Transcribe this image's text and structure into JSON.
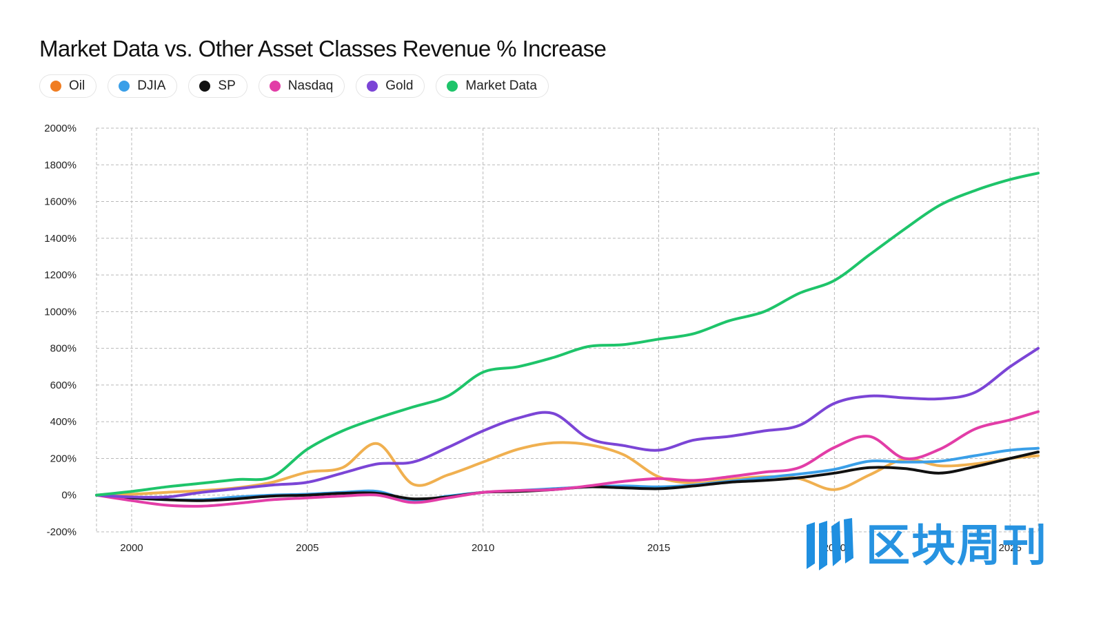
{
  "chart_data": {
    "type": "line",
    "title": "Market Data vs. Other Asset Classes Revenue % Increase",
    "xlabel": "",
    "ylabel": "",
    "xlim": [
      1999,
      2025.8
    ],
    "ylim": [
      -200,
      2000
    ],
    "grid": true,
    "legend_position": "top-left",
    "x_ticks": [
      2000,
      2005,
      2010,
      2015,
      2020,
      2025
    ],
    "x_tick_labels": [
      "2000",
      "2005",
      "2010",
      "2015",
      "2020",
      "2025"
    ],
    "y_ticks": [
      -200,
      0,
      200,
      400,
      600,
      800,
      1000,
      1200,
      1400,
      1600,
      1800,
      2000
    ],
    "y_tick_labels": [
      "-200%",
      "0%",
      "200%",
      "400%",
      "600%",
      "800%",
      "1000%",
      "1200%",
      "1400%",
      "1600%",
      "1800%",
      "2000%"
    ],
    "x": [
      1999,
      2000,
      2001,
      2002,
      2003,
      2004,
      2005,
      2006,
      2007,
      2008,
      2009,
      2010,
      2011,
      2012,
      2013,
      2014,
      2015,
      2016,
      2017,
      2018,
      2019,
      2020,
      2021,
      2022,
      2023,
      2024,
      2025,
      2025.8
    ],
    "series": [
      {
        "name": "Oil",
        "color": "#f0b050",
        "values": [
          0,
          5,
          15,
          25,
          40,
          70,
          125,
          150,
          280,
          60,
          110,
          180,
          250,
          285,
          275,
          220,
          100,
          65,
          85,
          100,
          90,
          30,
          110,
          195,
          160,
          170,
          200,
          215
        ]
      },
      {
        "name": "DJIA",
        "color": "#3a9fe8",
        "values": [
          0,
          -15,
          -25,
          -25,
          -10,
          0,
          5,
          15,
          20,
          -30,
          -5,
          15,
          25,
          35,
          45,
          50,
          45,
          55,
          75,
          95,
          115,
          140,
          185,
          180,
          185,
          215,
          245,
          255
        ]
      },
      {
        "name": "SP",
        "color": "#111111",
        "values": [
          0,
          -15,
          -25,
          -30,
          -20,
          -5,
          0,
          10,
          10,
          -20,
          -10,
          15,
          20,
          30,
          45,
          40,
          35,
          50,
          70,
          80,
          95,
          120,
          150,
          145,
          120,
          155,
          200,
          235
        ]
      },
      {
        "name": "Nasdaq",
        "color": "#e23da7",
        "values": [
          0,
          -30,
          -55,
          -60,
          -45,
          -25,
          -15,
          -5,
          0,
          -40,
          -15,
          15,
          25,
          30,
          50,
          75,
          90,
          80,
          100,
          125,
          150,
          260,
          320,
          200,
          250,
          360,
          410,
          455
        ]
      },
      {
        "name": "Gold",
        "color": "#7b45d6",
        "values": [
          0,
          -10,
          -10,
          15,
          35,
          55,
          70,
          120,
          170,
          180,
          260,
          350,
          420,
          445,
          310,
          270,
          245,
          300,
          320,
          350,
          380,
          500,
          540,
          530,
          525,
          560,
          700,
          800
        ]
      },
      {
        "name": "Market Data",
        "color": "#1ec46a",
        "values": [
          0,
          20,
          45,
          65,
          85,
          100,
          250,
          350,
          420,
          480,
          540,
          670,
          700,
          750,
          810,
          820,
          850,
          880,
          950,
          1000,
          1100,
          1170,
          1310,
          1450,
          1580,
          1660,
          1720,
          1755
        ]
      }
    ]
  },
  "legend": [
    {
      "label": "Oil",
      "color": "#f07d22"
    },
    {
      "label": "DJIA",
      "color": "#3a9fe8"
    },
    {
      "label": "SP",
      "color": "#111111"
    },
    {
      "label": "Nasdaq",
      "color": "#e23da7"
    },
    {
      "label": "Gold",
      "color": "#7b45d6"
    },
    {
      "label": "Market Data",
      "color": "#1ec46a"
    }
  ],
  "watermark": {
    "text": "区块周刊"
  }
}
